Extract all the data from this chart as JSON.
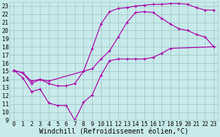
{
  "xlabel": "Windchill (Refroidissement éolien,°C)",
  "xlim": [
    -0.5,
    23.5
  ],
  "ylim": [
    9,
    23.5
  ],
  "xticks": [
    0,
    1,
    2,
    3,
    4,
    5,
    6,
    7,
    8,
    9,
    10,
    11,
    12,
    13,
    14,
    15,
    16,
    17,
    18,
    19,
    20,
    21,
    22,
    23
  ],
  "yticks": [
    9,
    10,
    11,
    12,
    13,
    14,
    15,
    16,
    17,
    18,
    19,
    20,
    21,
    22,
    23
  ],
  "bg_color": "#c8eaea",
  "grid_color": "#a0c8c8",
  "line_color": "#aa00aa",
  "line1_x": [
    0,
    1,
    2,
    3,
    4,
    5,
    6,
    7,
    8,
    9,
    10,
    11,
    12,
    13,
    14,
    15,
    16,
    17,
    18,
    23
  ],
  "line1_y": [
    15.1,
    14.2,
    12.5,
    12.8,
    11.1,
    10.8,
    10.8,
    9.0,
    11.2,
    12.1,
    14.5,
    16.3,
    16.5,
    16.5,
    16.5,
    16.5,
    16.7,
    17.2,
    17.8,
    18.0
  ],
  "line2_x": [
    0,
    1,
    2,
    3,
    4,
    5,
    6,
    7,
    8,
    9,
    10,
    11,
    12,
    13,
    14,
    15,
    16,
    17,
    18,
    19,
    20,
    21,
    22,
    23
  ],
  "line2_y": [
    15.1,
    14.8,
    13.5,
    14.0,
    13.5,
    13.2,
    13.2,
    13.5,
    15.0,
    17.8,
    20.8,
    22.3,
    22.7,
    22.8,
    23.0,
    23.1,
    23.2,
    23.2,
    23.3,
    23.3,
    23.2,
    22.8,
    22.5,
    22.5
  ],
  "line3_x": [
    0,
    1,
    2,
    3,
    4,
    9,
    10,
    11,
    12,
    13,
    14,
    15,
    16,
    17,
    18,
    19,
    20,
    21,
    22,
    23
  ],
  "line3_y": [
    15.1,
    14.8,
    13.8,
    14.0,
    13.8,
    15.3,
    16.5,
    17.5,
    19.2,
    21.0,
    22.2,
    22.3,
    22.2,
    21.5,
    20.8,
    20.2,
    20.0,
    19.5,
    19.2,
    18.0
  ],
  "xlabel_fontsize": 7,
  "tick_fontsize": 6.0,
  "linewidth": 0.9,
  "markersize": 3.5
}
